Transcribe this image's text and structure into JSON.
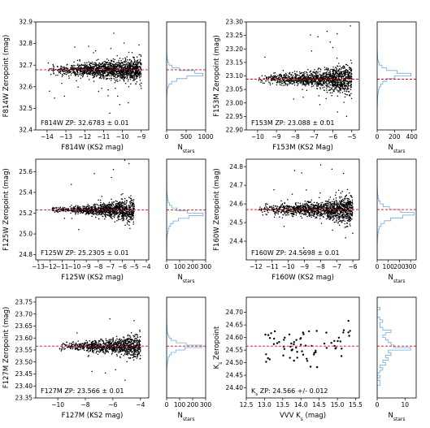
{
  "figure": {
    "panels": [
      {
        "id": "f814w",
        "xlabel": "F814W (KS2 mag)",
        "ylabel": "F814W Zeropoint (mag)",
        "annotation": "F814W ZP: 32.6783 ± 0.01",
        "xlim": [
          -14.6,
          -8.6
        ],
        "ylim": [
          32.4,
          32.9
        ],
        "xticks": [
          -14,
          -13,
          -12,
          -11,
          -10,
          -9
        ],
        "yticks": [
          32.4,
          32.5,
          32.6,
          32.7,
          32.8,
          32.9
        ],
        "ytick_labels": [
          "32.4",
          "32.5",
          "32.6",
          "32.7",
          "32.8",
          "32.9"
        ],
        "zp": 32.6783,
        "scatter": {
          "x_range": [
            -14,
            -9
          ],
          "n": 1400,
          "sigma_bright": 0.012,
          "sigma_faint": 0.03,
          "outlier_frac": 0.03
        },
        "hist": {
          "xlim": [
            0,
            1000
          ],
          "xticks": [
            0,
            500,
            1000
          ],
          "xtick_labels": [
            "0",
            "500",
            "1000"
          ],
          "xlabel": "N_stars",
          "bins_low": 32.4,
          "bin_width": 0.0125,
          "counts": [
            0,
            0,
            0,
            0,
            0,
            0,
            0,
            0,
            0,
            0,
            1,
            2,
            4,
            8,
            15,
            30,
            60,
            130,
            260,
            520,
            930,
            720,
            330,
            140,
            60,
            28,
            14,
            8,
            5,
            3,
            2,
            1,
            1,
            0,
            0,
            0,
            0,
            0,
            0,
            0
          ]
        }
      },
      {
        "id": "f153m",
        "xlabel": "F153M (KS2 Mag)",
        "ylabel": "F153M Zeropoint (mag)",
        "annotation": "F153M ZP: 23.088 ± 0.01",
        "xlim": [
          -10.6,
          -4.6
        ],
        "ylim": [
          22.9,
          23.3
        ],
        "xticks": [
          -10,
          -9,
          -8,
          -7,
          -6,
          -5
        ],
        "yticks": [
          22.9,
          22.95,
          23.0,
          23.05,
          23.1,
          23.15,
          23.2,
          23.25,
          23.3
        ],
        "ytick_labels": [
          "22.90",
          "22.95",
          "23.00",
          "23.05",
          "23.10",
          "23.15",
          "23.20",
          "23.25",
          "23.30"
        ],
        "zp": 23.088,
        "scatter": {
          "x_range": [
            -10,
            -5
          ],
          "n": 1300,
          "sigma_bright": 0.008,
          "sigma_faint": 0.03,
          "outlier_frac": 0.02
        },
        "hist": {
          "xlim": [
            0,
            450
          ],
          "xticks": [
            0,
            200,
            400
          ],
          "xtick_labels": [
            "0",
            "200",
            "400"
          ],
          "xlabel": "N_stars",
          "bins_low": 22.9,
          "bin_width": 0.01,
          "counts": [
            0,
            0,
            0,
            0,
            0,
            0,
            0,
            1,
            2,
            3,
            4,
            5,
            7,
            10,
            16,
            25,
            40,
            65,
            110,
            200,
            390,
            230,
            110,
            55,
            25,
            12,
            6,
            4,
            3,
            2,
            1,
            1,
            0,
            0,
            0,
            0,
            0,
            0,
            0,
            0
          ]
        }
      },
      {
        "id": "f125w",
        "xlabel": "F125W (KS2 mag)",
        "ylabel": "F125W Zeropoint (mag)",
        "annotation": "F125W ZP: 25.2305 ± 0.01",
        "xlim": [
          -13.2,
          -3.8
        ],
        "ylim": [
          24.75,
          25.72
        ],
        "xticks": [
          -13,
          -12,
          -11,
          -10,
          -9,
          -8,
          -7,
          -6,
          -5,
          -4
        ],
        "yticks": [
          24.8,
          25.0,
          25.2,
          25.4,
          25.6
        ],
        "ytick_labels": [
          "24.8",
          "25.0",
          "25.2",
          "25.4",
          "25.6"
        ],
        "zp": 25.2305,
        "scatter": {
          "x_range": [
            -12,
            -5
          ],
          "n": 1100,
          "sigma_bright": 0.012,
          "sigma_faint": 0.06,
          "outlier_frac": 0.02
        },
        "hist": {
          "xlim": [
            0,
            300
          ],
          "xticks": [
            0,
            100,
            200,
            300
          ],
          "xtick_labels": [
            "0",
            "100",
            "200",
            "300"
          ],
          "xlabel": "N_stars",
          "bins_low": 24.75,
          "bin_width": 0.025,
          "counts": [
            0,
            0,
            0,
            0,
            0,
            1,
            1,
            2,
            3,
            5,
            8,
            12,
            18,
            30,
            50,
            90,
            170,
            280,
            160,
            80,
            40,
            22,
            12,
            8,
            5,
            3,
            2,
            1,
            1,
            1,
            1,
            0,
            0,
            0,
            0,
            0,
            0,
            0
          ]
        }
      },
      {
        "id": "f160w",
        "xlabel": "F160W (KS2 mag)",
        "ylabel": "F160W Zeropoint (mag)",
        "annotation": "F160W ZP: 24.5698 ± 0.01",
        "xlim": [
          -12.6,
          -5.6
        ],
        "ylim": [
          24.3,
          24.84
        ],
        "xticks": [
          -12,
          -11,
          -10,
          -9,
          -8,
          -7,
          -6
        ],
        "yticks": [
          24.4,
          24.5,
          24.6,
          24.7,
          24.8
        ],
        "ytick_labels": [
          "24.4",
          "24.5",
          "24.6",
          "24.7",
          "24.8"
        ],
        "zp": 24.5698,
        "scatter": {
          "x_range": [
            -12,
            -6
          ],
          "n": 1300,
          "sigma_bright": 0.012,
          "sigma_faint": 0.04,
          "outlier_frac": 0.02
        },
        "hist": {
          "xlim": [
            0,
            350
          ],
          "xticks": [
            0,
            100,
            200,
            300
          ],
          "xtick_labels": [
            "0",
            "100",
            "200",
            "300"
          ],
          "xlabel": "N_stars",
          "bins_low": 24.3,
          "bin_width": 0.015,
          "counts": [
            0,
            0,
            0,
            0,
            1,
            1,
            2,
            3,
            5,
            8,
            13,
            20,
            35,
            65,
            120,
            230,
            330,
            210,
            110,
            55,
            28,
            14,
            8,
            5,
            3,
            2,
            1,
            1,
            1,
            0,
            0,
            0,
            0,
            0,
            0,
            0
          ]
        }
      },
      {
        "id": "f127m",
        "xlabel": "F127M (KS2 mag)",
        "ylabel": "F127M Zeropoint (mag)",
        "annotation": "F127M ZP: 23.566 ± 0.01",
        "xlim": [
          -11.6,
          -3.4
        ],
        "ylim": [
          23.35,
          23.77
        ],
        "xticks": [
          -10,
          -8,
          -6,
          -4
        ],
        "yticks": [
          23.35,
          23.4,
          23.45,
          23.5,
          23.55,
          23.6,
          23.65,
          23.7,
          23.75
        ],
        "ytick_labels": [
          "23.35",
          "23.40",
          "23.45",
          "23.50",
          "23.55",
          "23.60",
          "23.65",
          "23.70",
          "23.75"
        ],
        "zp": 23.566,
        "scatter": {
          "x_range": [
            -10,
            -4
          ],
          "n": 1000,
          "sigma_bright": 0.008,
          "sigma_faint": 0.025,
          "outlier_frac": 0.02
        },
        "hist": {
          "xlim": [
            0,
            300
          ],
          "xticks": [
            0,
            100,
            200,
            300
          ],
          "xtick_labels": [
            "0",
            "100",
            "200",
            "300"
          ],
          "xlabel": "N_stars",
          "bins_low": 23.35,
          "bin_width": 0.01,
          "counts": [
            0,
            0,
            0,
            0,
            0,
            0,
            0,
            0,
            0,
            0,
            1,
            1,
            2,
            3,
            5,
            8,
            12,
            20,
            35,
            70,
            140,
            270,
            150,
            75,
            35,
            18,
            10,
            6,
            4,
            3,
            2,
            1,
            1,
            1,
            0,
            0,
            0,
            0,
            0,
            0,
            0,
            0
          ]
        }
      },
      {
        "id": "vvvks",
        "xlabel": "VVV K_s (mag)",
        "ylabel": "K_s Zeropoint",
        "annotation": "K_s ZP: 24.566 +/- 0.012",
        "xlim": [
          12.5,
          15.6
        ],
        "ylim": [
          24.36,
          24.76
        ],
        "xticks": [
          12.5,
          13.0,
          13.5,
          14.0,
          14.5,
          15.0,
          15.5
        ],
        "xtick_labels": [
          "12.5",
          "13.0",
          "13.5",
          "14.0",
          "14.5",
          "15.0",
          "15.5"
        ],
        "yticks": [
          24.4,
          24.45,
          24.5,
          24.55,
          24.6,
          24.65,
          24.7
        ],
        "ytick_labels": [
          "24.40",
          "24.45",
          "24.50",
          "24.55",
          "24.60",
          "24.65",
          "24.70"
        ],
        "zp": 24.566,
        "scatter": {
          "x_range": [
            12.95,
            15.35
          ],
          "n": 70,
          "sigma_bright": 0.04,
          "sigma_faint": 0.06,
          "outlier_frac": 0.0
        },
        "hist": {
          "xlim": [
            0,
            14
          ],
          "xticks": [
            0,
            10
          ],
          "xtick_labels": [
            "0",
            "10"
          ],
          "xlabel": "N_stars",
          "bins_low": 24.36,
          "bin_width": 0.01,
          "counts": [
            0,
            0,
            0,
            0,
            0,
            1,
            1,
            0,
            1,
            0,
            1,
            2,
            1,
            3,
            2,
            4,
            3,
            5,
            4,
            12,
            6,
            5,
            4,
            3,
            2,
            3,
            5,
            2,
            1,
            1,
            2,
            1,
            0,
            0,
            0,
            1,
            0,
            0,
            0,
            0
          ]
        }
      }
    ]
  },
  "chart_data": [
    {
      "type": "scatter",
      "xlabel": "F814W (KS2 mag)",
      "ylabel": "F814W Zeropoint (mag)",
      "xlim": [
        -14.6,
        -8.6
      ],
      "ylim": [
        32.4,
        32.9
      ],
      "zeropoint": 32.6783,
      "uncertainty": 0.01
    },
    {
      "type": "scatter",
      "xlabel": "F153M (KS2 Mag)",
      "ylabel": "F153M Zeropoint (mag)",
      "xlim": [
        -10.6,
        -4.6
      ],
      "ylim": [
        22.9,
        23.3
      ],
      "zeropoint": 23.088,
      "uncertainty": 0.01
    },
    {
      "type": "scatter",
      "xlabel": "F125W (KS2 mag)",
      "ylabel": "F125W Zeropoint (mag)",
      "xlim": [
        -13.2,
        -3.8
      ],
      "ylim": [
        24.75,
        25.72
      ],
      "zeropoint": 25.2305,
      "uncertainty": 0.01
    },
    {
      "type": "scatter",
      "xlabel": "F160W (KS2 mag)",
      "ylabel": "F160W Zeropoint (mag)",
      "xlim": [
        -12.6,
        -5.6
      ],
      "ylim": [
        24.3,
        24.84
      ],
      "zeropoint": 24.5698,
      "uncertainty": 0.01
    },
    {
      "type": "scatter",
      "xlabel": "F127M (KS2 mag)",
      "ylabel": "F127M Zeropoint (mag)",
      "xlim": [
        -11.6,
        -3.4
      ],
      "ylim": [
        23.35,
        23.77
      ],
      "zeropoint": 23.566,
      "uncertainty": 0.01
    },
    {
      "type": "scatter",
      "xlabel": "VVV K_s (mag)",
      "ylabel": "K_s Zeropoint",
      "xlim": [
        12.5,
        15.6
      ],
      "ylim": [
        24.36,
        24.76
      ],
      "zeropoint": 24.566,
      "uncertainty": 0.012
    }
  ],
  "style": {
    "point_color": "#000000",
    "zp_line_color": "#e8000b",
    "hist_color": "#6fa8dc",
    "axis_color": "#000000"
  }
}
